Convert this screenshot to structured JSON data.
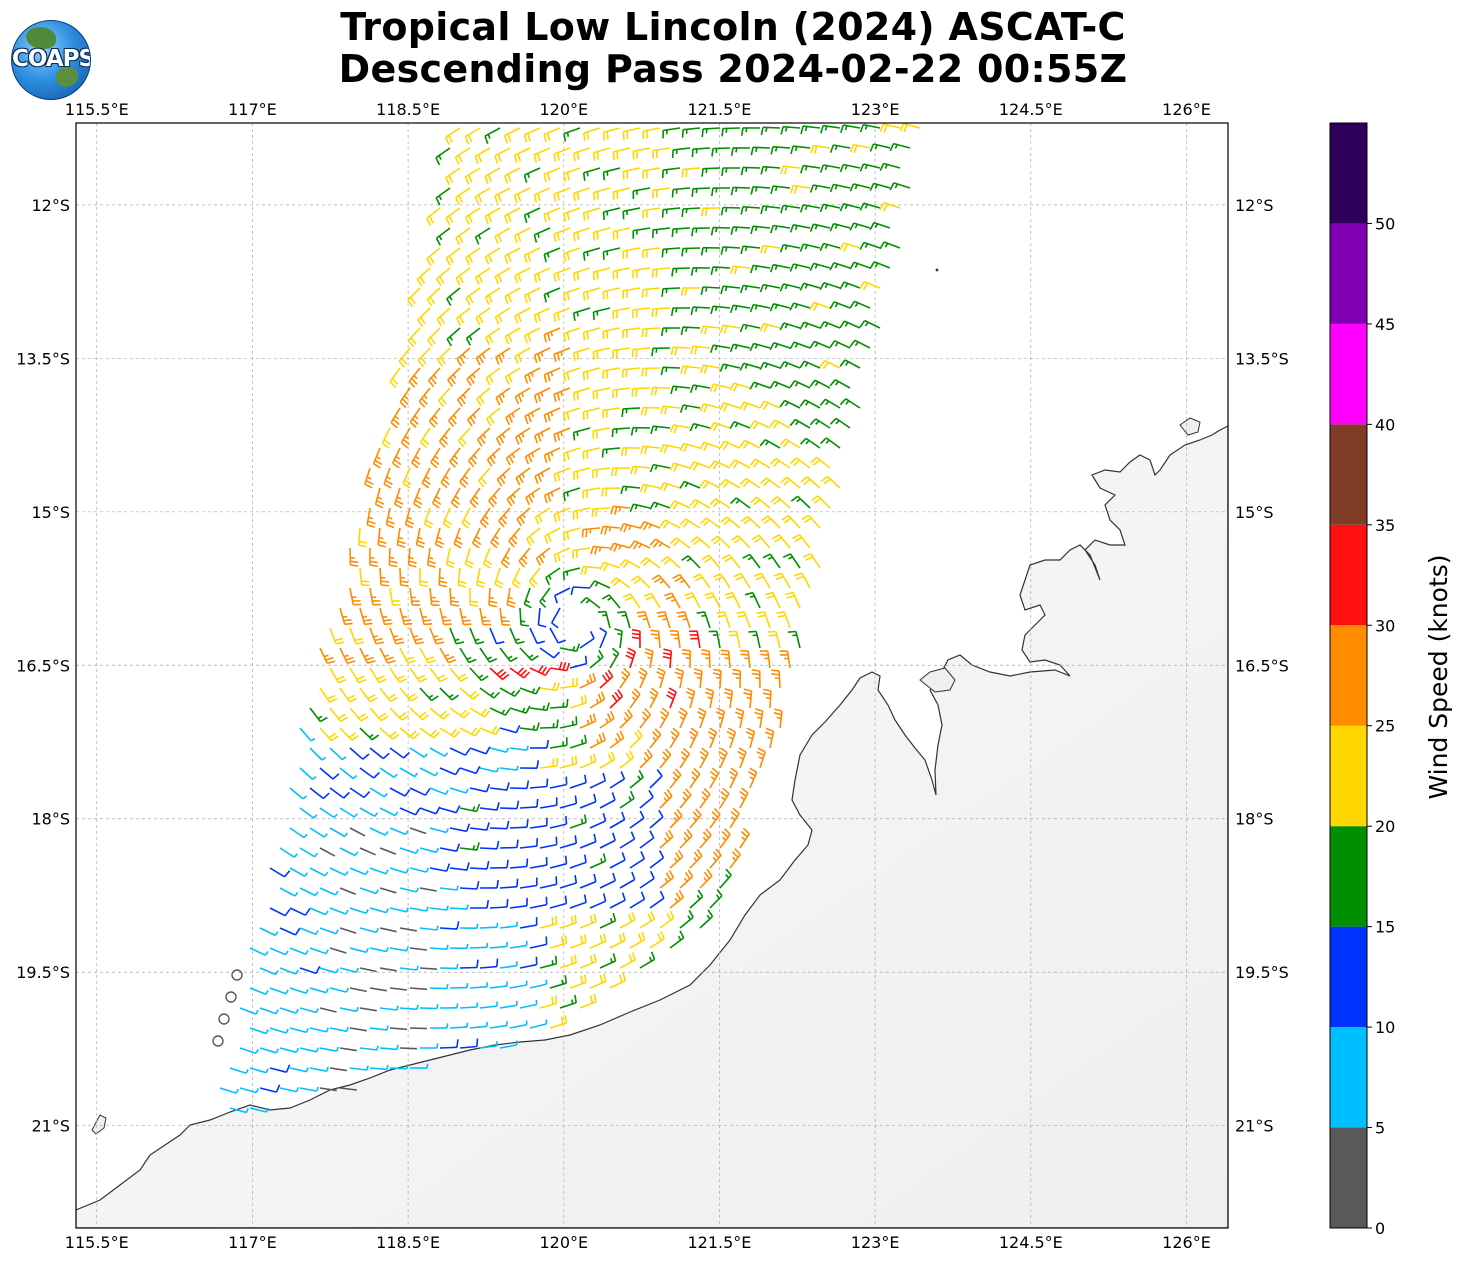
{
  "title": {
    "line1": "Tropical Low Lincoln (2024) ASCAT-C",
    "line2": "Descending Pass 2024-02-22 00:55Z"
  },
  "logo": {
    "text": "COAPS",
    "icon": "globe-icon"
  },
  "map": {
    "lon_range": [
      115.3,
      126.4
    ],
    "lat_range": [
      -22.0,
      -11.2
    ],
    "lon_ticks": [
      "115.5°E",
      "117°E",
      "118.5°E",
      "120°E",
      "121.5°E",
      "123°E",
      "124.5°E",
      "126°E"
    ],
    "lat_ticks": [
      "12°S",
      "13.5°S",
      "15°S",
      "16.5°S",
      "18°S",
      "19.5°S",
      "21°S"
    ],
    "gridlines": true,
    "storm_center": {
      "lon": 120.1,
      "lat": -16.1
    }
  },
  "colorbar": {
    "label": "Wind Speed (knots)",
    "tick_labels": [
      "0",
      "5",
      "10",
      "15",
      "20",
      "25",
      "30",
      "35",
      "40",
      "45",
      "50"
    ],
    "bins": [
      {
        "min": 0,
        "max": 5,
        "color": "#595959"
      },
      {
        "min": 5,
        "max": 10,
        "color": "#00bfff"
      },
      {
        "min": 10,
        "max": 15,
        "color": "#0033ff"
      },
      {
        "min": 15,
        "max": 20,
        "color": "#008f00"
      },
      {
        "min": 20,
        "max": 25,
        "color": "#ffd700"
      },
      {
        "min": 25,
        "max": 30,
        "color": "#ff8c00"
      },
      {
        "min": 30,
        "max": 35,
        "color": "#ff0f0f"
      },
      {
        "min": 35,
        "max": 40,
        "color": "#803c26"
      },
      {
        "min": 40,
        "max": 45,
        "color": "#ff00ff"
      },
      {
        "min": 45,
        "max": 50,
        "color": "#8000b3"
      },
      {
        "min": 50,
        "max": 55,
        "color": "#2e005c"
      }
    ]
  }
}
